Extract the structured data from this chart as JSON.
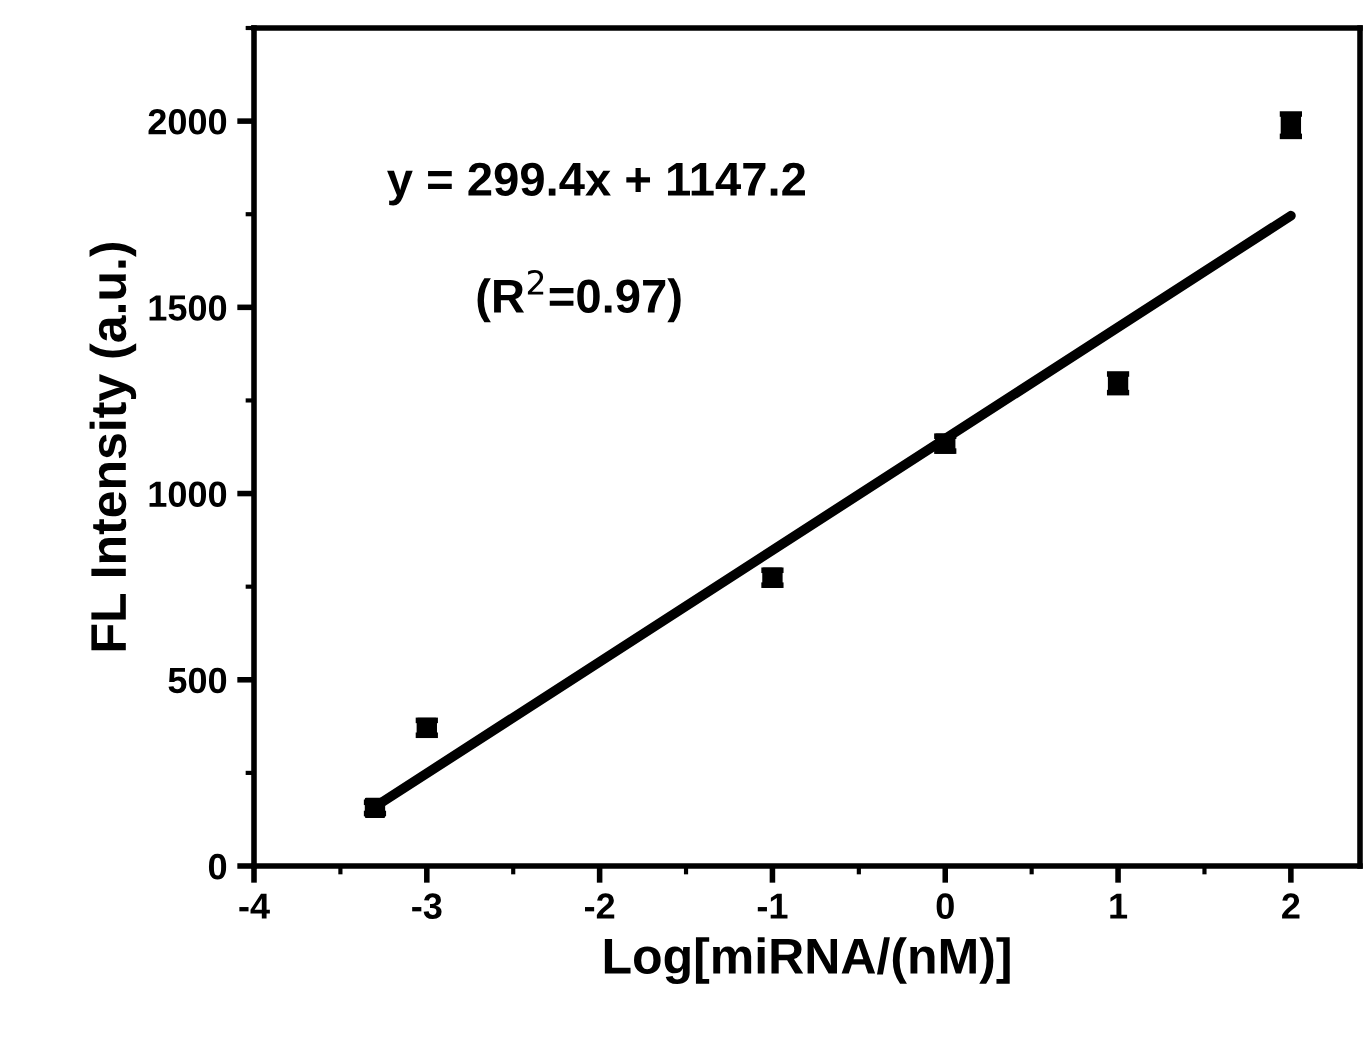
{
  "chart_data": {
    "type": "scatter",
    "xlabel": "Log[miRNA/(nM)]",
    "ylabel": "FL Intensity (a.u.)",
    "annotations": [
      "y = 299.4x + 1147.2",
      "(R$^{2}$=0.97)"
    ],
    "series": [
      {
        "color": "#000000",
        "x": [
          -3.3,
          -3,
          -1,
          0,
          1,
          2
        ],
        "values": [
          156,
          371,
          774,
          1134,
          1296,
          1989
        ],
        "errors": [
          15,
          20,
          20,
          20,
          25,
          30
        ],
        "marker": "square"
      },
      {
        "type": "line",
        "color": "#000000",
        "x": [
          -3.3,
          2
        ],
        "values": [
          159,
          1746
        ],
        "marker": "none"
      }
    ],
    "xlim": [
      -4,
      2.4
    ],
    "xticks": [
      -4,
      -3,
      -2,
      -1,
      0,
      1,
      2
    ],
    "ylim": [
      0,
      2250
    ],
    "yticks": [
      0,
      500,
      1000,
      1500,
      2000
    ],
    "grid": false,
    "legend": false
  }
}
